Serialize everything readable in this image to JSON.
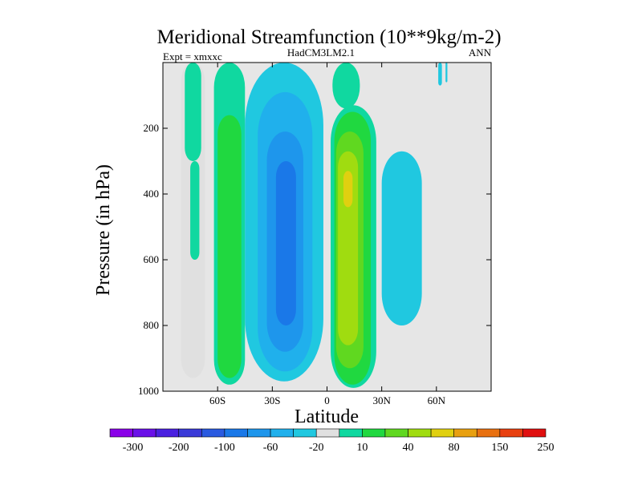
{
  "chart_data": {
    "type": "heatmap",
    "title": "Meridional Streamfunction (10**9kg/m-2)",
    "left_label": "Expt = xmxxc",
    "center_label": "HadCM3LM2.1",
    "right_label": "ANN",
    "xlabel": "Latitude",
    "ylabel": "Pressure (in hPa)",
    "xlim": [
      -90,
      90
    ],
    "ylim": [
      1000,
      0
    ],
    "x_ticks": [
      {
        "value": -60,
        "label": "60S"
      },
      {
        "value": -30,
        "label": "30S"
      },
      {
        "value": 0,
        "label": "0"
      },
      {
        "value": 30,
        "label": "30N"
      },
      {
        "value": 60,
        "label": "60N"
      }
    ],
    "y_ticks": [
      {
        "value": 200,
        "label": "200"
      },
      {
        "value": 400,
        "label": "400"
      },
      {
        "value": 600,
        "label": "600"
      },
      {
        "value": 800,
        "label": "800"
      },
      {
        "value": 1000,
        "label": "1000"
      }
    ],
    "colorbar": {
      "colors": [
        "#8a00e8",
        "#6a10e8",
        "#4a20e0",
        "#3a3ad8",
        "#2a5ae0",
        "#1a78e8",
        "#1e96ec",
        "#20b0ec",
        "#20c8e0",
        "#e0e0e0",
        "#10d8a0",
        "#20d840",
        "#60d820",
        "#a0dc10",
        "#e0d010",
        "#e8a010",
        "#e87010",
        "#e84010",
        "#e01010"
      ],
      "tick_labels": [
        "-300",
        "-200",
        "-100",
        "-60",
        "-20",
        "10",
        "40",
        "80",
        "150",
        "250"
      ]
    },
    "regions": [
      {
        "band": 0,
        "lat": [
          -80,
          -67
        ],
        "p": [
          0,
          960
        ]
      },
      {
        "band": 1,
        "lat": [
          -78,
          -69
        ],
        "p": [
          0,
          300
        ]
      },
      {
        "band": 1,
        "lat": [
          -75,
          -70
        ],
        "p": [
          300,
          600
        ]
      },
      {
        "band": 1,
        "lat": [
          -62,
          -45
        ],
        "p": [
          0,
          980
        ]
      },
      {
        "band": 2,
        "lat": [
          -60,
          -47
        ],
        "p": [
          160,
          960
        ]
      },
      {
        "band": -1,
        "lat": [
          -45,
          -2
        ],
        "p": [
          0,
          970
        ]
      },
      {
        "band": -2,
        "lat": [
          -38,
          -8
        ],
        "p": [
          90,
          940
        ]
      },
      {
        "band": -3,
        "lat": [
          -33,
          -13
        ],
        "p": [
          210,
          880
        ]
      },
      {
        "band": -4,
        "lat": [
          -28,
          -17
        ],
        "p": [
          300,
          800
        ]
      },
      {
        "band": 1,
        "lat": [
          3,
          18
        ],
        "p": [
          0,
          140
        ]
      },
      {
        "band": 1,
        "lat": [
          2,
          27
        ],
        "p": [
          130,
          990
        ]
      },
      {
        "band": 2,
        "lat": [
          4,
          24
        ],
        "p": [
          150,
          980
        ]
      },
      {
        "band": 3,
        "lat": [
          5,
          20
        ],
        "p": [
          210,
          930
        ]
      },
      {
        "band": 4,
        "lat": [
          6,
          17
        ],
        "p": [
          270,
          860
        ]
      },
      {
        "band": 5,
        "lat": [
          9,
          14
        ],
        "p": [
          330,
          440
        ]
      },
      {
        "band": -1,
        "lat": [
          30,
          52
        ],
        "p": [
          270,
          800
        ]
      },
      {
        "band": -1,
        "lat": [
          61,
          63
        ],
        "p": [
          0,
          70
        ]
      },
      {
        "band": -1,
        "lat": [
          65,
          66
        ],
        "p": [
          0,
          60
        ]
      }
    ]
  }
}
